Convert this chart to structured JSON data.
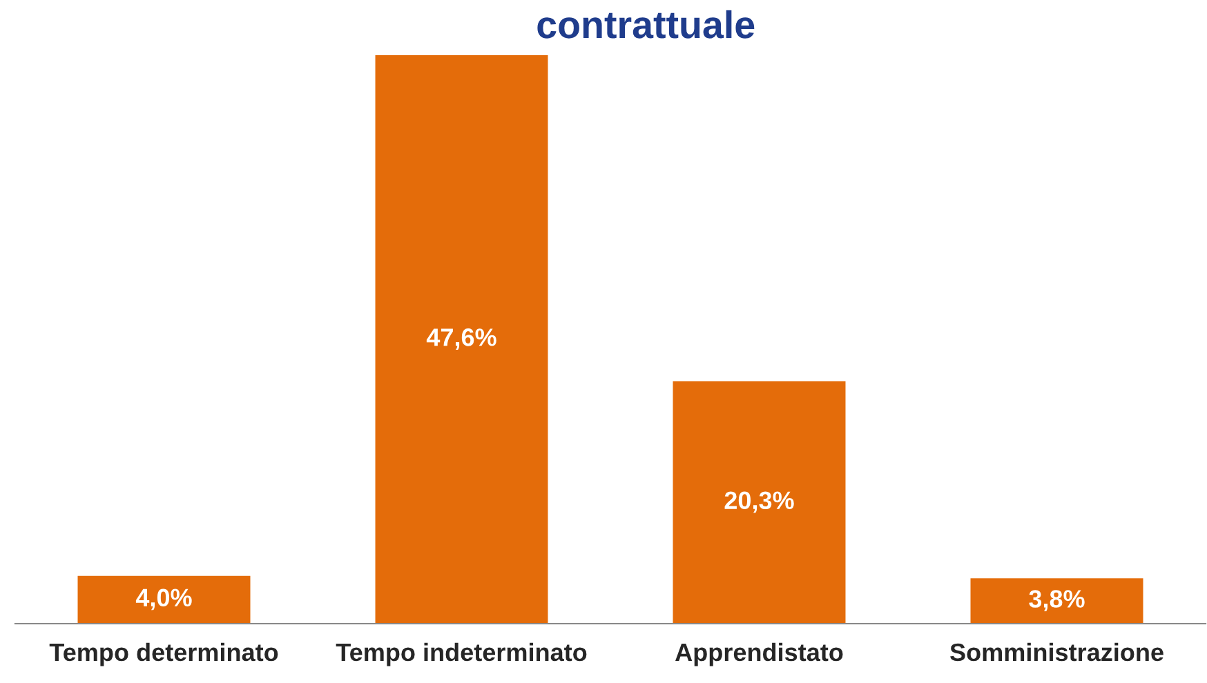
{
  "chart_data": {
    "type": "bar",
    "title": "contrattuale",
    "categories": [
      "Tempo determinato",
      "Tempo indeterminato",
      "Apprendistato",
      "Somministrazione"
    ],
    "values": [
      4.0,
      47.6,
      20.3,
      3.8
    ],
    "value_labels": [
      "4,0%",
      "47,6%",
      "20,3%",
      "3,8%"
    ],
    "color": "#e46c0a",
    "grid": false
  }
}
